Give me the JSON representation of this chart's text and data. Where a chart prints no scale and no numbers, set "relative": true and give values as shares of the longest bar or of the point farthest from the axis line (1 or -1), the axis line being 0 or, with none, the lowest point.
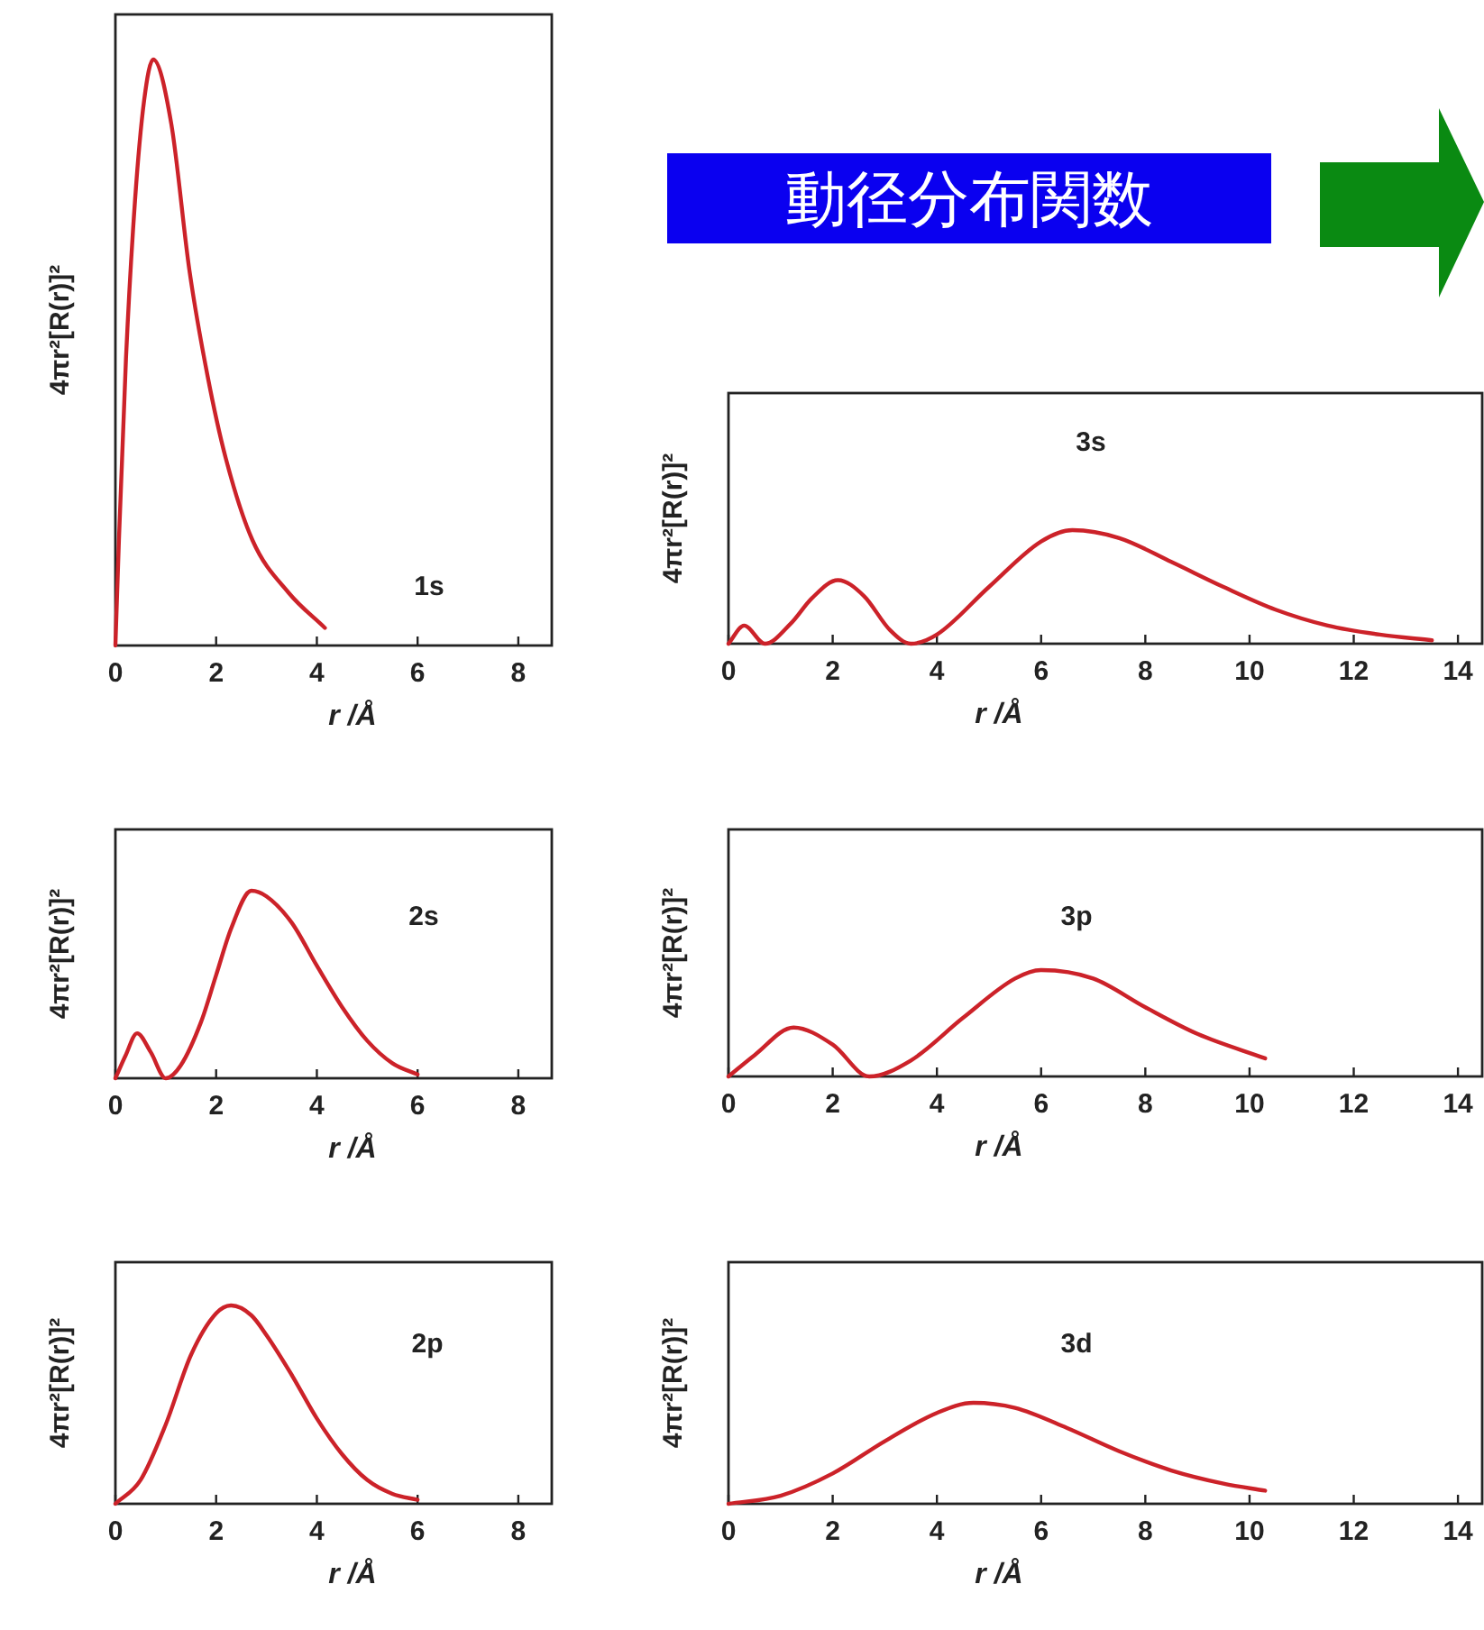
{
  "chart_data": [
    {
      "type": "line",
      "relative": true,
      "xlabel": "r /Å",
      "ylabel": "4πr²[R(r)]²",
      "annotations": [
        "1s"
      ],
      "xlim": [
        0,
        8.7
      ],
      "xticks": [
        0,
        2,
        4,
        6,
        8
      ],
      "marker": "none",
      "line_style": "solid",
      "grid": false,
      "series": [
        {
          "color": "#cc2229",
          "x": [
            0,
            0.07,
            0.21,
            0.39,
            0.57,
            0.75,
            1.11,
            1.47,
            1.83,
            2.19,
            2.72,
            3.44,
            4.16
          ],
          "values": [
            0,
            0.18,
            0.49,
            0.76,
            0.93,
            1,
            0.89,
            0.64,
            0.46,
            0.32,
            0.18,
            0.09,
            0.03
          ]
        }
      ]
    },
    {
      "type": "other",
      "title": "動径分布関数"
    },
    {
      "type": "line",
      "relative": true,
      "xlabel": "r /Å",
      "ylabel": "4πr²[R(r)]²",
      "annotations": [
        "3s"
      ],
      "xlim": [
        0,
        14.5
      ],
      "xticks": [
        0,
        2,
        4,
        6,
        8,
        10,
        12,
        14
      ],
      "marker": "none",
      "line_style": "solid",
      "grid": false,
      "series": [
        {
          "color": "#cc2229",
          "x": [
            0,
            0.3,
            0.7,
            1.2,
            1.6,
            2.1,
            2.6,
            3.1,
            3.5,
            4,
            5,
            6,
            6.6,
            7.5,
            8.5,
            9.5,
            10.5,
            11.5,
            12.5,
            13.5
          ],
          "values": [
            0,
            0.16,
            0,
            0.18,
            0.4,
            0.56,
            0.42,
            0.12,
            0,
            0.08,
            0.5,
            0.9,
            1,
            0.93,
            0.72,
            0.5,
            0.3,
            0.16,
            0.08,
            0.03
          ]
        }
      ]
    },
    {
      "type": "line",
      "relative": true,
      "xlabel": "r /Å",
      "ylabel": "4πr²[R(r)]²",
      "annotations": [
        "2s"
      ],
      "xlim": [
        0,
        8.7
      ],
      "xticks": [
        0,
        2,
        4,
        6,
        8
      ],
      "marker": "none",
      "line_style": "solid",
      "grid": false,
      "series": [
        {
          "color": "#cc2229",
          "x": [
            0,
            0.2,
            0.43,
            0.7,
            1,
            1.3,
            1.7,
            2,
            2.3,
            2.7,
            3,
            3.5,
            4,
            4.5,
            5,
            5.5,
            6
          ],
          "values": [
            0,
            0.12,
            0.24,
            0.14,
            0,
            0.07,
            0.3,
            0.55,
            0.8,
            1,
            0.97,
            0.83,
            0.6,
            0.38,
            0.2,
            0.08,
            0.02
          ]
        }
      ]
    },
    {
      "type": "line",
      "relative": true,
      "xlabel": "r /Å",
      "ylabel": "4πr²[R(r)]²",
      "annotations": [
        "3p"
      ],
      "xlim": [
        0,
        14.5
      ],
      "xticks": [
        0,
        2,
        4,
        6,
        8,
        10,
        12,
        14
      ],
      "marker": "none",
      "line_style": "solid",
      "grid": false,
      "series": [
        {
          "color": "#cc2229",
          "x": [
            0,
            0.5,
            1.25,
            2,
            2.7,
            3.5,
            4.5,
            5.5,
            6,
            7,
            8,
            9,
            10.3
          ],
          "values": [
            0,
            0.2,
            0.46,
            0.3,
            0,
            0.15,
            0.55,
            0.92,
            1,
            0.92,
            0.65,
            0.4,
            0.17
          ]
        }
      ]
    },
    {
      "type": "line",
      "relative": true,
      "xlabel": "r /Å",
      "ylabel": "4πr²[R(r)]²",
      "annotations": [
        "2p"
      ],
      "xlim": [
        0,
        8.7
      ],
      "xticks": [
        0,
        2,
        4,
        6,
        8
      ],
      "marker": "none",
      "line_style": "solid",
      "grid": false,
      "series": [
        {
          "color": "#cc2229",
          "x": [
            0,
            0.5,
            1,
            1.5,
            2,
            2.3,
            2.7,
            3,
            3.5,
            4,
            4.5,
            5,
            5.5,
            6
          ],
          "values": [
            0,
            0.12,
            0.4,
            0.75,
            0.96,
            1,
            0.95,
            0.85,
            0.65,
            0.43,
            0.25,
            0.12,
            0.05,
            0.02
          ]
        }
      ]
    },
    {
      "type": "line",
      "relative": true,
      "xlabel": "r /Å",
      "ylabel": "4πr²[R(r)]²",
      "annotations": [
        "3d"
      ],
      "xlim": [
        0,
        14.5
      ],
      "xticks": [
        0,
        2,
        4,
        6,
        8,
        10,
        12,
        14
      ],
      "marker": "none",
      "line_style": "solid",
      "grid": false,
      "series": [
        {
          "color": "#cc2229",
          "x": [
            0,
            1,
            2,
            3,
            4,
            4.7,
            5.5,
            6.5,
            7.5,
            8.5,
            9.5,
            10.3
          ],
          "values": [
            0,
            0.08,
            0.3,
            0.62,
            0.9,
            1,
            0.95,
            0.75,
            0.52,
            0.33,
            0.2,
            0.13
          ]
        }
      ]
    }
  ]
}
